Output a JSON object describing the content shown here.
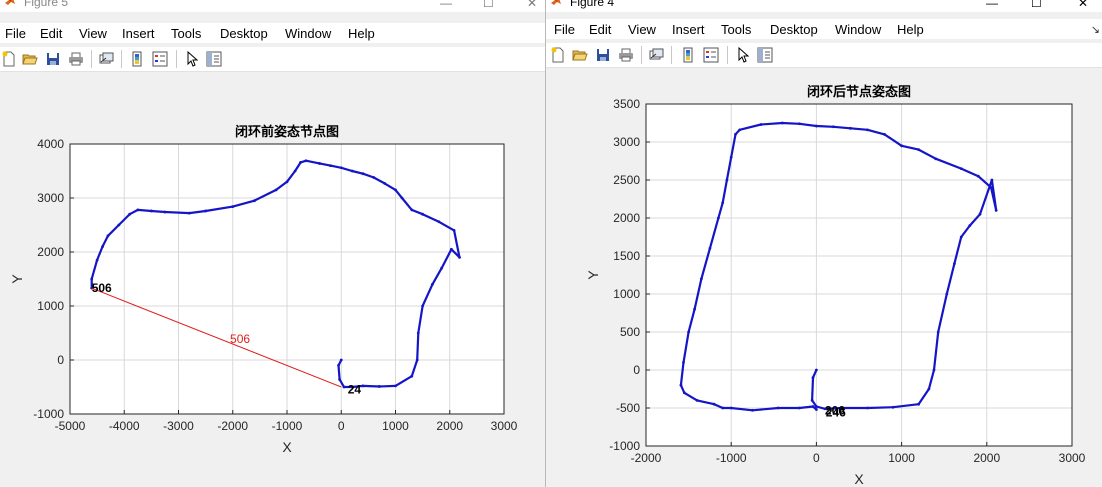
{
  "figure5": {
    "title": "Figure 5",
    "menu": [
      "File",
      "Edit",
      "View",
      "Insert",
      "Tools",
      "Desktop",
      "Window",
      "Help"
    ],
    "window_controls": {
      "minimize": "—",
      "maximize": "☐",
      "close": "✕"
    }
  },
  "figure4": {
    "title": "Figure 4",
    "menu": [
      "File",
      "Edit",
      "View",
      "Insert",
      "Tools",
      "Desktop",
      "Window",
      "Help"
    ],
    "window_controls": {
      "minimize": "—",
      "maximize": "☐",
      "close": "✕"
    },
    "overflow": "↘"
  },
  "toolbar_icons": [
    "new-figure-icon",
    "open-file-icon",
    "save-icon",
    "print-icon",
    "link-icon",
    "colorbar-icon",
    "legend-icon",
    "pointer-icon",
    "property-editor-icon"
  ],
  "colors": {
    "trajectory": "#1515c8",
    "loop_line": "#e02020",
    "grid": "#d9d9d9"
  },
  "chart_data": [
    {
      "type": "line",
      "title": "闭环前姿态节点图",
      "xlabel": "X",
      "ylabel": "Y",
      "xlim": [
        -5000,
        3000
      ],
      "ylim": [
        -1000,
        4000
      ],
      "xticks": [
        -5000,
        -4000,
        -3000,
        -2000,
        -1000,
        0,
        1000,
        2000,
        3000
      ],
      "yticks": [
        -1000,
        0,
        1000,
        2000,
        3000,
        4000
      ],
      "grid": true,
      "series": [
        {
          "color": "#1515c8",
          "x": [
            0,
            -50,
            -30,
            50,
            200,
            400,
            700,
            1000,
            1300,
            1400,
            1420,
            1500,
            1680,
            1850,
            2030,
            2180,
            2080,
            1800,
            1500,
            1300,
            1120,
            1000,
            800,
            600,
            400,
            200,
            0,
            -200,
            -400,
            -650,
            -750,
            -850,
            -1000,
            -1200,
            -1600,
            -2000,
            -2500,
            -2800,
            -3250,
            -3500,
            -3750,
            -3900,
            -4100,
            -4300,
            -4400,
            -4500,
            -4600,
            -4600
          ],
          "y": [
            0,
            -100,
            -360,
            -500,
            -500,
            -480,
            -490,
            -480,
            -300,
            0,
            500,
            1000,
            1400,
            1700,
            2050,
            1900,
            2400,
            2560,
            2700,
            2780,
            3000,
            3150,
            3270,
            3380,
            3450,
            3500,
            3560,
            3600,
            3640,
            3690,
            3660,
            3500,
            3300,
            3150,
            2950,
            2840,
            2760,
            2720,
            2740,
            2760,
            2780,
            2700,
            2500,
            2300,
            2100,
            1850,
            1500,
            1330
          ]
        },
        {
          "color": "#e02020",
          "x": [
            -4600,
            0
          ],
          "y": [
            1330,
            -500
          ]
        }
      ],
      "annotations": [
        {
          "text": "506",
          "x": -4600,
          "y": 1330,
          "color": "#000000"
        },
        {
          "text": "506",
          "x": -2050,
          "y": 390,
          "color": "#e02020"
        },
        {
          "text": "24",
          "x": 120,
          "y": -550,
          "color": "#000000"
        }
      ]
    },
    {
      "type": "line",
      "title": "闭环后节点姿态图",
      "xlabel": "X",
      "ylabel": "Y",
      "xlim": [
        -2000,
        3000
      ],
      "ylim": [
        -1000,
        3500
      ],
      "xticks": [
        -2000,
        -1000,
        0,
        1000,
        2000,
        3000
      ],
      "yticks": [
        -1000,
        -500,
        0,
        500,
        1000,
        1500,
        2000,
        2500,
        3000,
        3500
      ],
      "grid": true,
      "series": [
        {
          "color": "#1515c8",
          "x": [
            0,
            -40,
            -50,
            0,
            100,
            300,
            600,
            900,
            1200,
            1320,
            1380,
            1430,
            1530,
            1620,
            1700,
            1800,
            1920,
            2060,
            2110,
            2050,
            1900,
            1700,
            1400,
            1200,
            1000,
            800,
            600,
            400,
            200,
            0,
            -200,
            -400,
            -650,
            -900,
            -950,
            -1000,
            -1050,
            -1100,
            -1150,
            -1250,
            -1350,
            -1430,
            -1500,
            -1560,
            -1590,
            -1550,
            -1400,
            -1200,
            -1100,
            -1000,
            -750,
            -450,
            -200,
            -40,
            0
          ],
          "y": [
            0,
            -100,
            -400,
            -480,
            -510,
            -500,
            -500,
            -490,
            -450,
            -250,
            0,
            500,
            1000,
            1400,
            1750,
            1900,
            2050,
            2500,
            2100,
            2400,
            2550,
            2650,
            2780,
            2900,
            2950,
            3100,
            3160,
            3180,
            3200,
            3210,
            3240,
            3250,
            3230,
            3160,
            3100,
            2800,
            2500,
            2200,
            2000,
            1600,
            1200,
            800,
            500,
            100,
            -200,
            -300,
            -400,
            -450,
            -500,
            -500,
            -530,
            -500,
            -500,
            -480,
            -520
          ]
        }
      ],
      "annotations": [
        {
          "text": "206",
          "x": 100,
          "y": -530,
          "color": "#000000"
        },
        {
          "text": "246",
          "x": 110,
          "y": -560,
          "color": "#000000"
        }
      ]
    }
  ]
}
